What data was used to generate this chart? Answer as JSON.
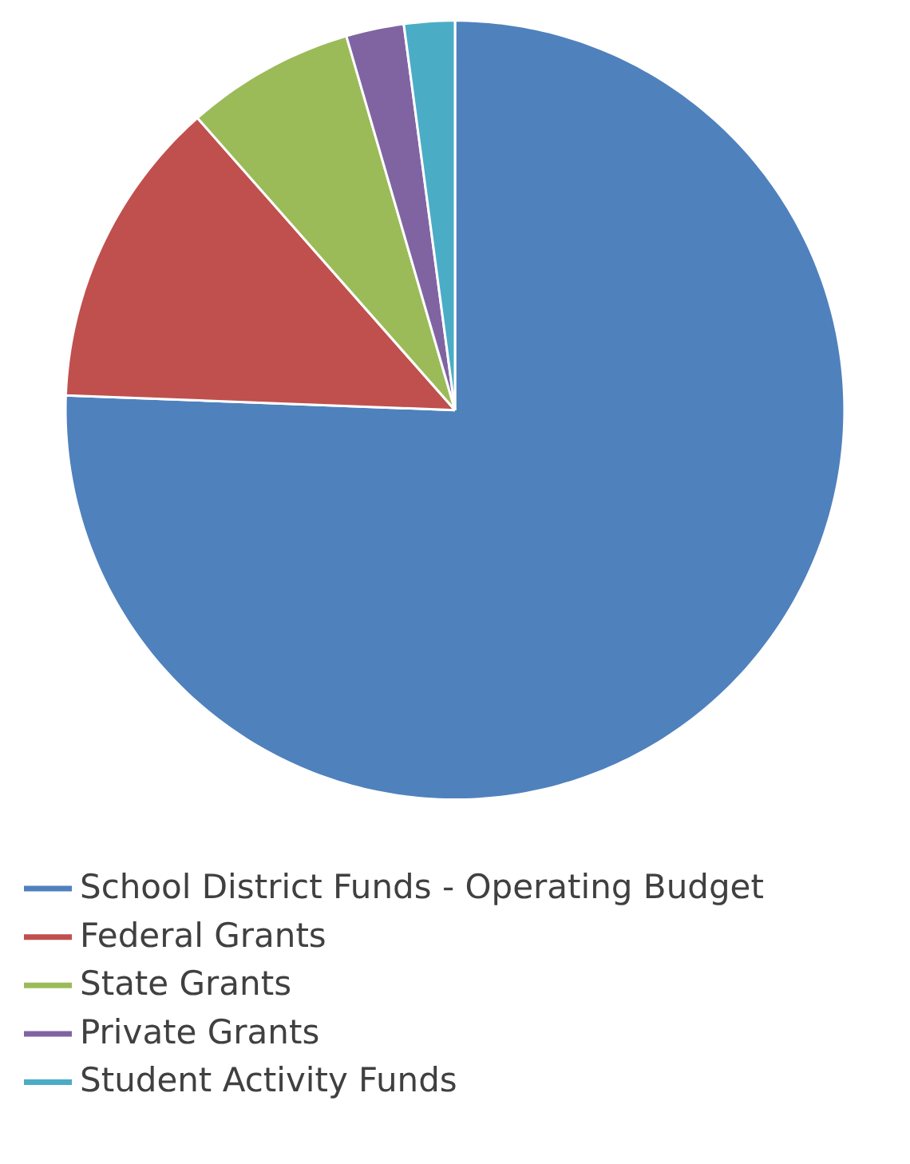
{
  "chart_data": {
    "type": "pie",
    "categories": [
      "School District Funds - Operating Budget",
      "Federal Grants",
      "State Grants",
      "Private Grants",
      "Student Activity Funds"
    ],
    "values": [
      75.6,
      12.9,
      7.0,
      2.4,
      2.1
    ],
    "colors": [
      "#4f81bd",
      "#c0504d",
      "#9bbb59",
      "#8064a2",
      "#4bacc6"
    ],
    "legend": "bottom"
  }
}
